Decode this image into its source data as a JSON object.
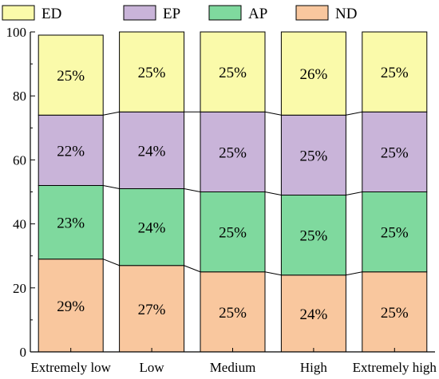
{
  "chart_data": {
    "type": "bar",
    "stacked": true,
    "percent_stacked": true,
    "connector_lines": true,
    "categories": [
      "Extremely low",
      "Low",
      "Medium",
      "High",
      "Extremely high"
    ],
    "series": [
      {
        "name": "ND",
        "values": [
          29,
          27,
          25,
          24,
          25
        ],
        "labels": [
          "29%",
          "27%",
          "25%",
          "24%",
          "25%"
        ],
        "color": "#F9C79E"
      },
      {
        "name": "AP",
        "values": [
          23,
          24,
          25,
          25,
          25
        ],
        "labels": [
          "23%",
          "24%",
          "25%",
          "25%",
          "25%"
        ],
        "color": "#7FD99E"
      },
      {
        "name": "EP",
        "values": [
          22,
          24,
          25,
          25,
          25
        ],
        "labels": [
          "22%",
          "24%",
          "25%",
          "25%",
          "25%"
        ],
        "color": "#C9B4D9"
      },
      {
        "name": "ED",
        "values": [
          25,
          25,
          25,
          26,
          25
        ],
        "labels": [
          "25%",
          "25%",
          "25%",
          "26%",
          "25%"
        ],
        "color": "#FAFAAA"
      }
    ],
    "legend_order": [
      "ED",
      "EP",
      "AP",
      "ND"
    ],
    "legend_position": "top",
    "ylim": [
      0,
      100
    ],
    "yticks": [
      0,
      20,
      40,
      60,
      80,
      100
    ],
    "xlabel": "",
    "ylabel": "",
    "title": "",
    "grid": false
  }
}
